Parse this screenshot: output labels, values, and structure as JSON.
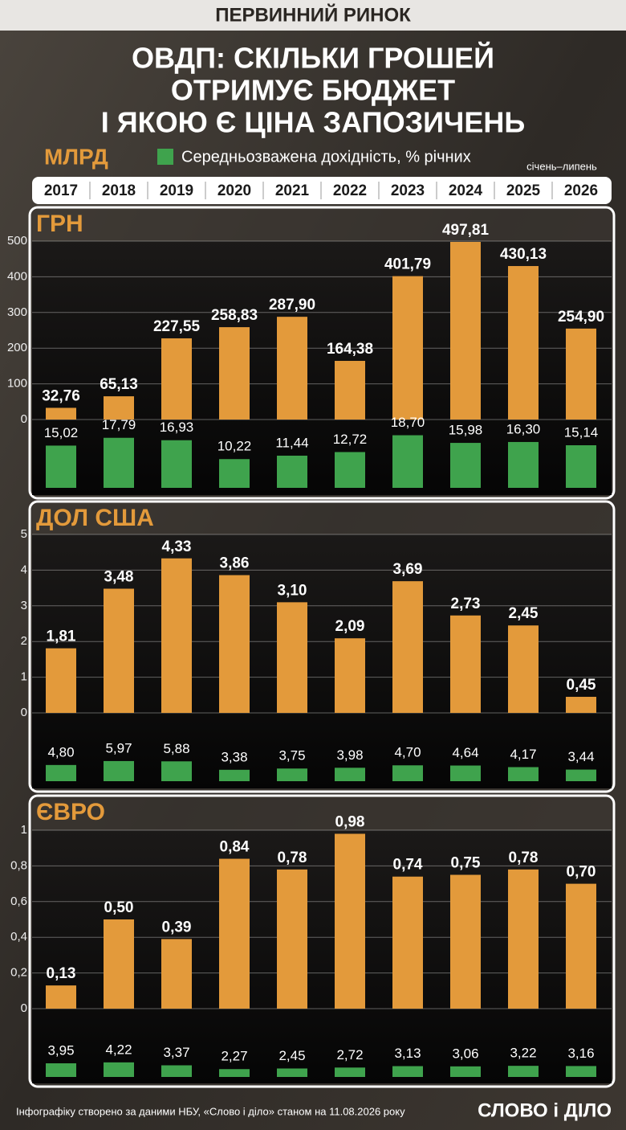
{
  "header": {
    "tag": "ПЕРВИННИЙ РИНОК",
    "title_lines": [
      "ОВДП: СКІЛЬКИ ГРОШЕЙ",
      "ОТРИМУЄ БЮДЖЕТ",
      "І ЯКОЮ Є ЦІНА ЗАПОЗИЧЕНЬ"
    ]
  },
  "legend": {
    "unit": "МЛРД",
    "yield_label": "Середньозважена дохідність, % річних",
    "note": "січень–липень"
  },
  "chart_data": [
    {
      "type": "bar",
      "title": "ГРН",
      "categories": [
        "2017",
        "2018",
        "2019",
        "2020",
        "2021",
        "2022",
        "2023",
        "2024",
        "2025",
        "2026"
      ],
      "ylim": [
        0,
        500
      ],
      "yticks": [
        0,
        100,
        200,
        300,
        400,
        500
      ],
      "grid": true,
      "series": [
        {
          "color": "#e39a3b",
          "values": [
            32.76,
            65.13,
            227.55,
            258.83,
            287.9,
            164.38,
            401.79,
            497.81,
            430.13,
            254.9
          ],
          "value_labels": [
            "32,76",
            "65,13",
            "227,55",
            "258,83",
            "287,90",
            "164,38",
            "401,79",
            "497,81",
            "430,13",
            "254,90"
          ]
        },
        {
          "color": "#3fa34d",
          "values": [
            15.02,
            17.79,
            16.93,
            10.22,
            11.44,
            12.72,
            18.7,
            15.98,
            16.3,
            15.14
          ],
          "value_labels": [
            "15,02",
            "17,79",
            "16,93",
            "10,22",
            "11,44",
            "12,72",
            "18,70",
            "15,98",
            "16,30",
            "15,14"
          ]
        }
      ]
    },
    {
      "type": "bar",
      "title": "ДОЛ США",
      "ylim": [
        0,
        5
      ],
      "yticks": [
        0,
        1,
        2,
        3,
        4,
        5
      ],
      "grid": true,
      "series": [
        {
          "color": "#e39a3b",
          "values": [
            1.81,
            3.48,
            4.33,
            3.86,
            3.1,
            2.09,
            3.69,
            2.73,
            2.45,
            0.45
          ],
          "value_labels": [
            "1,81",
            "3,48",
            "4,33",
            "3,86",
            "3,10",
            "2,09",
            "3,69",
            "2,73",
            "2,45",
            "0,45"
          ]
        },
        {
          "color": "#3fa34d",
          "values": [
            4.8,
            5.97,
            5.88,
            3.38,
            3.75,
            3.98,
            4.7,
            4.64,
            4.17,
            3.44
          ],
          "value_labels": [
            "4,80",
            "5,97",
            "5,88",
            "3,38",
            "3,75",
            "3,98",
            "4,70",
            "4,64",
            "4,17",
            "3,44"
          ]
        }
      ]
    },
    {
      "type": "bar",
      "title": "ЄВРО",
      "ylim": [
        0,
        1
      ],
      "yticks": [
        0,
        {
          "value": 0.2,
          "label": "0,2"
        },
        {
          "value": 0.4,
          "label": "0,4"
        },
        {
          "value": 0.6,
          "label": "0,6"
        },
        {
          "value": 0.8,
          "label": "0,8"
        },
        1
      ],
      "grid": true,
      "series": [
        {
          "color": "#e39a3b",
          "values": [
            0.13,
            0.5,
            0.39,
            0.84,
            0.78,
            0.98,
            0.74,
            0.75,
            0.78,
            0.7
          ],
          "value_labels": [
            "0,13",
            "0,50",
            "0,39",
            "0,84",
            "0,78",
            "0,98",
            "0,74",
            "0,75",
            "0,78",
            "0,70"
          ]
        },
        {
          "color": "#3fa34d",
          "values": [
            3.95,
            4.22,
            3.37,
            2.27,
            2.45,
            2.72,
            3.13,
            3.06,
            3.22,
            3.16
          ],
          "value_labels": [
            "3,95",
            "4,22",
            "3,37",
            "2,27",
            "2,45",
            "2,72",
            "3,13",
            "3,06",
            "3,22",
            "3,16"
          ]
        }
      ]
    }
  ],
  "footer": {
    "source": "Інфографіку створено за даними НБУ, «Слово і діло» станом на 11.08.2026 року",
    "logo": "СЛОВО і ДІЛО"
  }
}
